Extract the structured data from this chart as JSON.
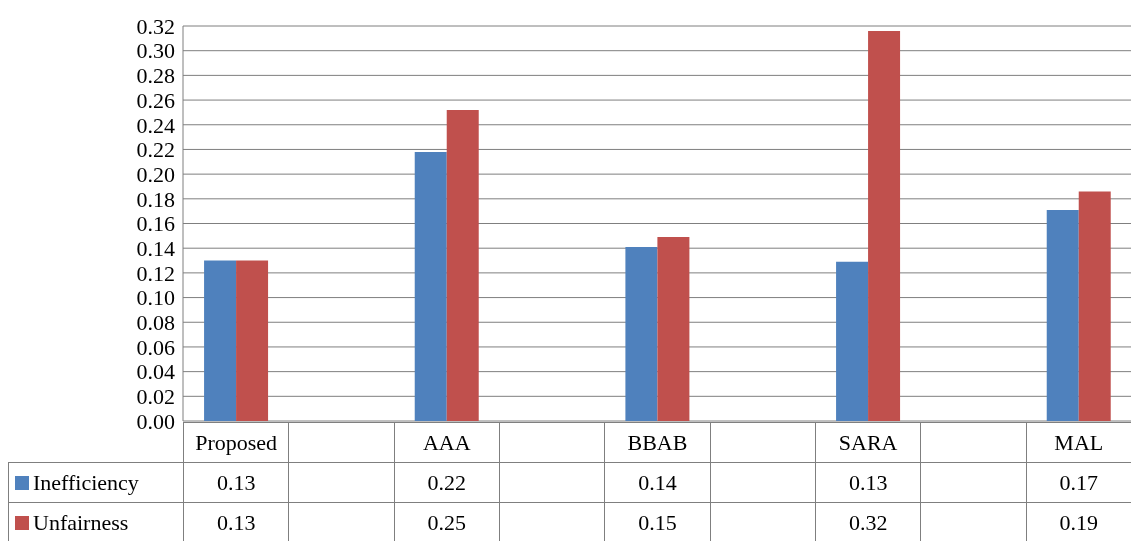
{
  "chart_data": {
    "type": "bar",
    "categories": [
      "Proposed",
      null,
      "AAA",
      null,
      "BBAB",
      null,
      "SARA",
      null,
      "MAL"
    ],
    "series": [
      {
        "name": "Inefficiency",
        "color": "#4f81bd",
        "values": [
          0.13,
          null,
          0.218,
          null,
          0.141,
          null,
          0.129,
          null,
          0.171
        ],
        "value_labels": [
          "0.13",
          null,
          "0.22",
          null,
          "0.14",
          null,
          "0.13",
          null,
          "0.17"
        ]
      },
      {
        "name": "Unfairness",
        "color": "#c0504d",
        "values": [
          0.13,
          null,
          0.252,
          null,
          0.149,
          null,
          0.316,
          null,
          0.186
        ],
        "value_labels": [
          "0.13",
          null,
          "0.25",
          null,
          "0.15",
          null,
          "0.32",
          null,
          "0.19"
        ]
      }
    ],
    "ylim": [
      0,
      0.32
    ],
    "yticks": [
      {
        "value": 0,
        "label": "0.00"
      },
      0.02,
      0.04,
      0.06,
      0.08,
      {
        "value": 0.1,
        "label": "0.10"
      },
      0.12,
      0.14,
      0.16,
      0.18,
      {
        "value": 0.2,
        "label": "0.20"
      },
      0.22,
      0.24,
      0.26,
      0.28,
      {
        "value": 0.3,
        "label": "0.30"
      },
      0.32
    ],
    "grid": "y",
    "legend": "bottom"
  }
}
